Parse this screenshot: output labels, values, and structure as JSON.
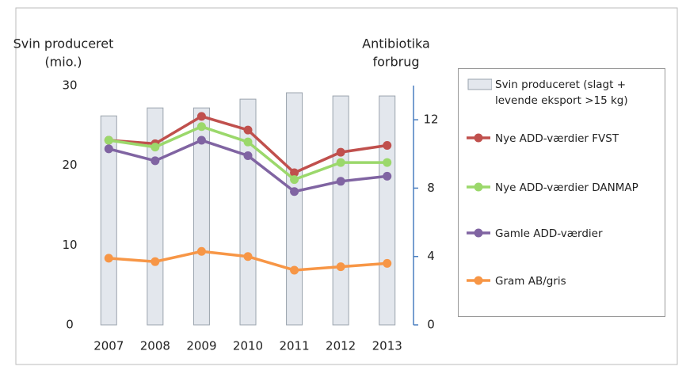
{
  "chart_data": {
    "type": "bar-line",
    "ylabel": [
      "Svin produceret",
      "(mio.)"
    ],
    "y2label": [
      "Antibiotika",
      "forbrug"
    ],
    "categories": [
      "2007",
      "2008",
      "2009",
      "2010",
      "2011",
      "2012",
      "2013"
    ],
    "ylim": [
      0,
      30
    ],
    "yticks": [
      0,
      10,
      20,
      30
    ],
    "y2lim": [
      0,
      14
    ],
    "y2ticks": [
      0,
      4,
      8,
      12
    ],
    "series": [
      {
        "name": "Svin produceret (slagt + levende eksport >15 kg)",
        "type": "bar",
        "color": "#e3e7ed",
        "values": [
          26.2,
          27.2,
          27.2,
          28.3,
          29.1,
          28.7,
          28.7
        ]
      },
      {
        "name": "Nye ADD-værdier FVST",
        "type": "line",
        "axis": "y2",
        "color": "#c0504d",
        "values": [
          10.8,
          10.6,
          12.2,
          11.4,
          8.9,
          10.1,
          10.5
        ]
      },
      {
        "name": "Nye ADD-værdier DANMAP",
        "type": "line",
        "axis": "y2",
        "color": "#9bd86b",
        "values": [
          10.8,
          10.4,
          11.6,
          10.7,
          8.5,
          9.5,
          9.5
        ]
      },
      {
        "name": "Gamle ADD-værdier",
        "type": "line",
        "axis": "y2",
        "color": "#8064a2",
        "values": [
          10.3,
          9.6,
          10.8,
          9.9,
          7.8,
          8.4,
          8.7
        ]
      },
      {
        "name": "Gram AB/gris",
        "type": "line",
        "axis": "y2",
        "color": "#f79646",
        "values": [
          3.9,
          3.7,
          4.3,
          4.0,
          3.2,
          3.4,
          3.6
        ]
      }
    ]
  }
}
